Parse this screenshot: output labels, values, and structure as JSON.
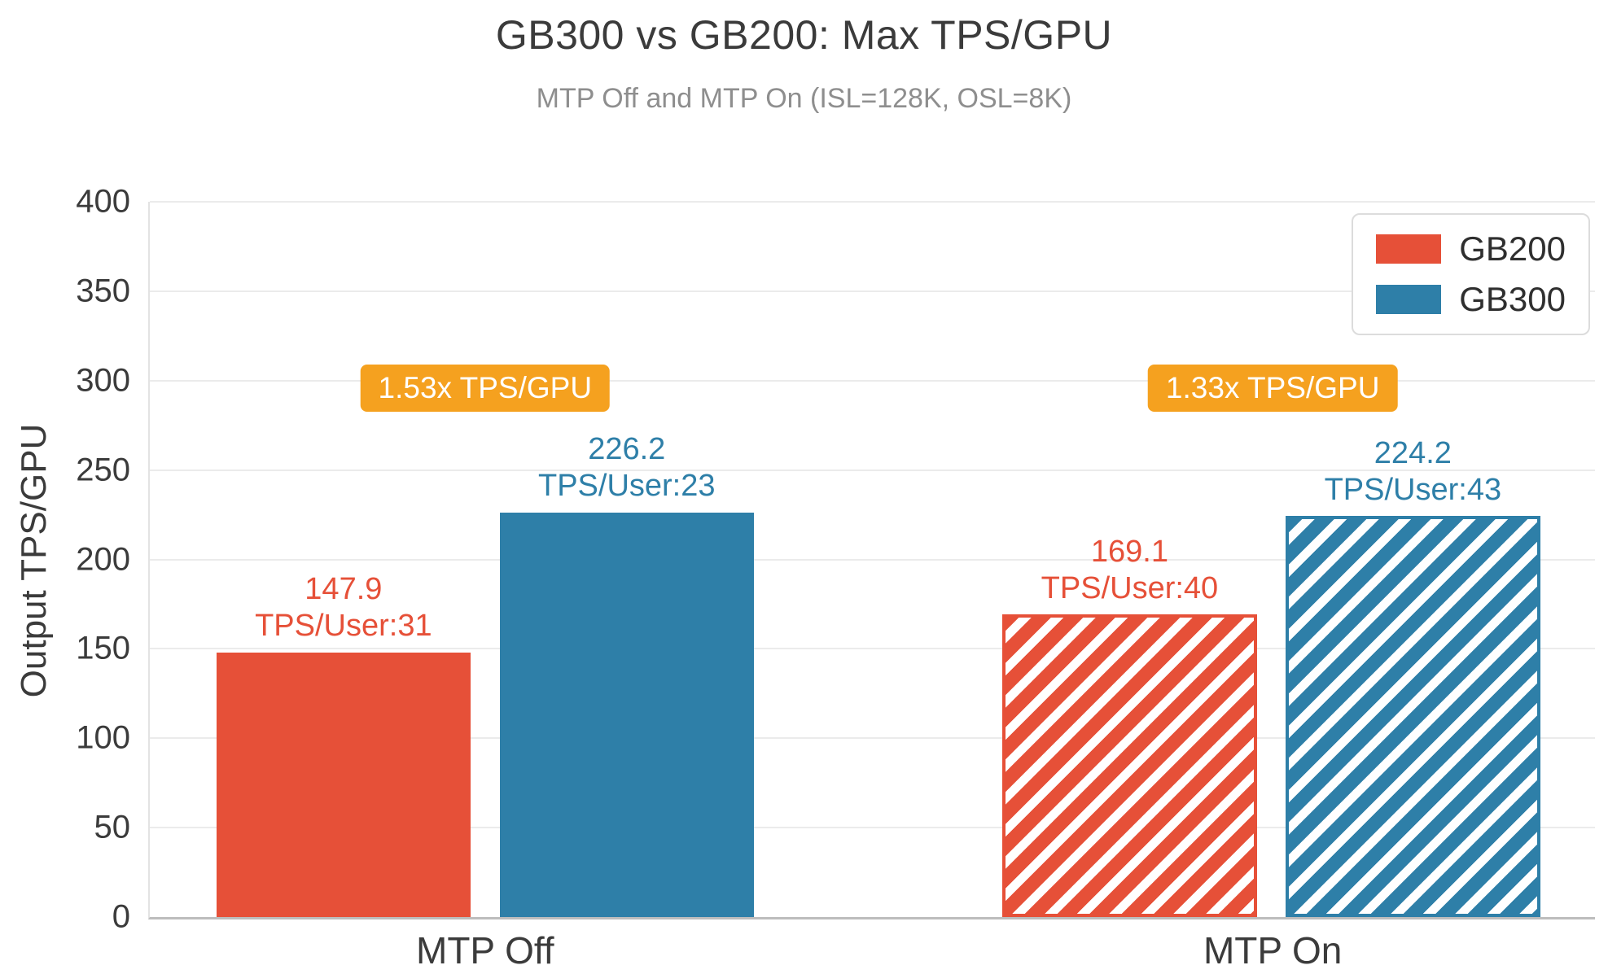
{
  "chart_data": {
    "type": "bar",
    "title": "GB300 vs GB200: Max TPS/GPU",
    "subtitle": "MTP Off and MTP On (ISL=128K, OSL=8K)",
    "ylabel": "Output TPS/GPU",
    "xlabel": "",
    "categories": [
      "MTP Off",
      "MTP On"
    ],
    "series": [
      {
        "name": "GB200",
        "color": "#e65038",
        "values": [
          147.9,
          169.1
        ],
        "bar_labels": [
          [
            "147.9",
            "TPS/User:31"
          ],
          [
            "169.1",
            "TPS/User:40"
          ]
        ],
        "hatched": [
          false,
          true
        ]
      },
      {
        "name": "GB300",
        "color": "#2e7fa8",
        "values": [
          226.2,
          224.2
        ],
        "bar_labels": [
          [
            "226.2",
            "TPS/User:23"
          ],
          [
            "224.2",
            "TPS/User:43"
          ]
        ],
        "hatched": [
          false,
          true
        ]
      }
    ],
    "annotations": [
      {
        "text": "1.53x TPS/GPU",
        "category": "MTP Off",
        "color": "#f5a11f"
      },
      {
        "text": "1.33x TPS/GPU",
        "category": "MTP On",
        "color": "#f5a11f"
      }
    ],
    "ylim": [
      0,
      400
    ],
    "yticks": [
      0,
      50,
      100,
      150,
      200,
      250,
      300,
      350,
      400
    ],
    "grid": true,
    "legend_position": "upper right"
  }
}
